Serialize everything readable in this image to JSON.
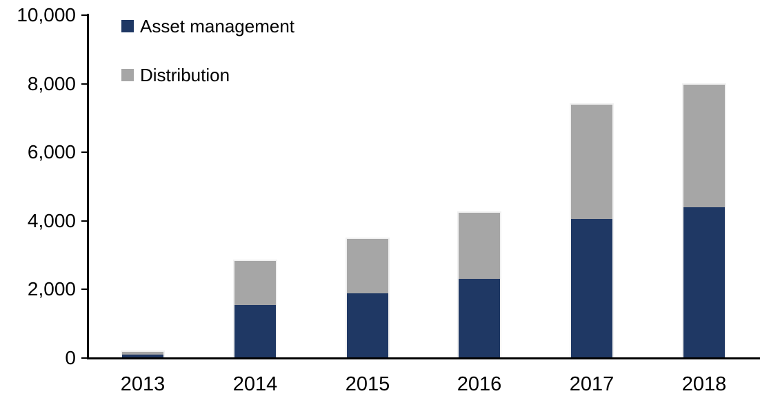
{
  "chart_data": {
    "type": "bar",
    "stacked": true,
    "title": "",
    "xlabel": "",
    "ylabel": "",
    "categories": [
      "2013",
      "2014",
      "2015",
      "2016",
      "2017",
      "2018"
    ],
    "series": [
      {
        "name": "Asset management",
        "color": "#1f3864",
        "values": [
          100,
          1550,
          1900,
          2300,
          4050,
          4400
        ]
      },
      {
        "name": "Distribution",
        "color": "#a6a6a6",
        "values": [
          100,
          1300,
          1600,
          1950,
          3350,
          3600
        ]
      }
    ],
    "totals": [
      200,
      2850,
      3500,
      4250,
      7400,
      8000
    ],
    "ylim": [
      0,
      10000
    ],
    "yticks": [
      {
        "value": 0,
        "label": "0"
      },
      {
        "value": 2000,
        "label": "2,000"
      },
      {
        "value": 4000,
        "label": "4,000"
      },
      {
        "value": 6000,
        "label": "6,000"
      },
      {
        "value": 8000,
        "label": "8,000"
      },
      {
        "value": 10000,
        "label": "10,000"
      }
    ],
    "grid": false,
    "legend_position": "top-left",
    "axis_color": "#000000",
    "background": "#ffffff"
  }
}
